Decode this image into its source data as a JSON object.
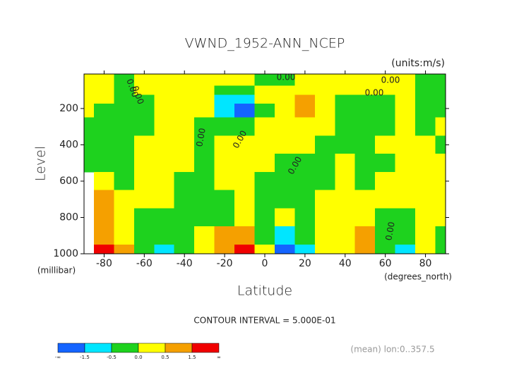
{
  "chart_data": {
    "type": "contour",
    "title": "VWND_1952-ANN_NCEP",
    "units_label": "(units:m/s)",
    "y_label": "Level",
    "y_unit_label": "(millibar)",
    "x_label": "Latitude",
    "x_unit_label": "(degrees_north)",
    "contour_interval_label": "CONTOUR INTERVAL = 5.000E-01",
    "footnote": "(mean) lon:0..357.5",
    "xlim": [
      -90,
      90
    ],
    "ylim": [
      1000,
      10
    ],
    "xticks": [
      -80,
      -60,
      -40,
      -20,
      0,
      20,
      40,
      60,
      80
    ],
    "yticks": [
      200,
      400,
      600,
      800,
      1000
    ],
    "x": [
      -90,
      -80,
      -70,
      -60,
      -50,
      -40,
      -30,
      -20,
      -10,
      0,
      10,
      20,
      30,
      40,
      50,
      60,
      70,
      80,
      90
    ],
    "y": [
      50,
      100,
      150,
      200,
      300,
      400,
      500,
      600,
      700,
      800,
      900,
      1000
    ],
    "z": [
      [
        0.25,
        0.25,
        -0.25,
        0.25,
        0.25,
        0.25,
        0.25,
        0.25,
        0.25,
        -0.25,
        -0.25,
        0.25,
        0.25,
        0.25,
        0.25,
        0.25,
        0.25,
        -0.25,
        -0.25
      ],
      [
        0.25,
        0.25,
        -0.25,
        0.25,
        0.25,
        0.25,
        0.25,
        -0.25,
        -0.25,
        0.25,
        0.25,
        0.25,
        0.25,
        0.25,
        0.25,
        0.25,
        0.25,
        -0.25,
        -0.25
      ],
      [
        0.25,
        0.25,
        -0.25,
        -0.25,
        0.25,
        0.25,
        0.25,
        -1,
        -1,
        0.25,
        0.25,
        1,
        0.25,
        -0.25,
        -0.25,
        -0.25,
        0.25,
        -0.25,
        -0.25
      ],
      [
        0.25,
        -0.25,
        -0.25,
        -0.25,
        0.25,
        0.25,
        0.25,
        -1,
        -1.8,
        -0.25,
        0.25,
        1,
        0.25,
        -0.25,
        -0.25,
        -0.25,
        0.25,
        -0.25,
        -0.25
      ],
      [
        -0.25,
        -0.25,
        -0.25,
        -0.25,
        0.25,
        0.25,
        -0.25,
        -0.25,
        -0.25,
        0.25,
        0.25,
        0.25,
        0.25,
        -0.25,
        -0.25,
        -0.25,
        0.25,
        -0.25,
        0.25
      ],
      [
        -0.25,
        -0.25,
        -0.25,
        0.25,
        0.25,
        0.25,
        -0.25,
        0.25,
        0.25,
        0.25,
        0.25,
        0.25,
        -0.25,
        -0.25,
        -0.25,
        0.25,
        0.25,
        0.25,
        -0.25
      ],
      [
        -0.25,
        -0.25,
        -0.25,
        0.25,
        0.25,
        0.25,
        -0.25,
        0.25,
        0.25,
        0.25,
        -0.25,
        -0.25,
        -0.25,
        0.25,
        -0.25,
        -0.25,
        0.25,
        0.25,
        0.25
      ],
      [
        null,
        0.25,
        -0.25,
        0.25,
        0.25,
        -0.25,
        -0.25,
        0.25,
        0.25,
        -0.25,
        -0.25,
        -0.25,
        -0.25,
        0.25,
        -0.25,
        0.25,
        0.25,
        0.25,
        0.25
      ],
      [
        null,
        1,
        0.25,
        0.25,
        0.25,
        -0.25,
        -0.25,
        -0.25,
        0.25,
        -0.25,
        -0.25,
        -0.25,
        0.25,
        0.25,
        0.25,
        0.25,
        0.25,
        0.25,
        0.25
      ],
      [
        null,
        1,
        0.25,
        -0.25,
        -0.25,
        -0.25,
        -0.25,
        -0.25,
        0.25,
        -0.25,
        0.25,
        -0.25,
        0.25,
        0.25,
        0.25,
        -0.25,
        -0.25,
        0.25,
        0.25
      ],
      [
        null,
        1,
        0.25,
        -0.25,
        -0.25,
        -0.25,
        0.25,
        1,
        1,
        -0.25,
        -1,
        -0.25,
        0.25,
        0.25,
        1,
        -0.25,
        -0.25,
        0.25,
        -0.25
      ],
      [
        null,
        2,
        1,
        -0.25,
        -1,
        -0.25,
        0.25,
        1,
        2,
        0.25,
        -2,
        -1,
        0.25,
        0.25,
        1,
        -0.25,
        -1,
        0.25,
        -0.25
      ]
    ],
    "levels": [
      {
        "value": -1.5,
        "label": "-1.5"
      },
      {
        "value": -0.5,
        "label": "-0.5"
      },
      {
        "value": 0,
        "label": "0.0"
      },
      {
        "value": 0.5,
        "label": "0.5"
      },
      {
        "value": 1.5,
        "label": "1.5"
      }
    ],
    "low_label": "-∞",
    "high_label": "∞",
    "colors": [
      "#1464ff",
      "#00e6ff",
      "#1ed21e",
      "#ffff00",
      "#f5a000",
      "#f00000"
    ],
    "contour_labels": [
      "0.00",
      "0.00",
      "0.00",
      "0.00",
      "0.00",
      "0.00",
      "0.00",
      "0.00",
      "0.00"
    ]
  }
}
